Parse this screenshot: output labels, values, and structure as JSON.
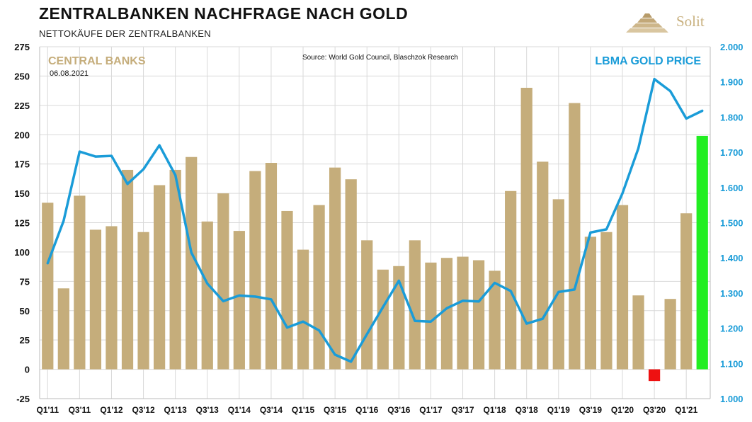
{
  "header": {
    "title": "ZENTRALBANKEN NACHFRAGE NACH GOLD",
    "subtitle": "NETTOKÄUFE DER ZENTRALBANKEN"
  },
  "logo": {
    "text": "Solit",
    "icon": "gold-bars-stack-icon"
  },
  "colors": {
    "bar": "#c5ad7b",
    "bar_negative": "#ee1111",
    "bar_highlight": "#22ee22",
    "line": "#1a9cd8",
    "grid": "#d9d9d9"
  },
  "chart_data": {
    "type": "bar",
    "title": "ZENTRALBANKEN NACHFRAGE NACH GOLD",
    "subtitle": "NETTOKÄUFE DER ZENTRALBANKEN",
    "legend_left": "CENTRAL BANKS",
    "legend_right": "LBMA GOLD PRICE",
    "date": "06.08.2021",
    "source": "Source: World Gold Council, Blaschzok Research",
    "x_tick_labels": [
      "Q1'11",
      "Q3'11",
      "Q1'12",
      "Q3'12",
      "Q1'13",
      "Q3'13",
      "Q1'14",
      "Q3'14",
      "Q1'15",
      "Q3'15",
      "Q1'16",
      "Q3'16",
      "Q1'17",
      "Q3'17",
      "Q1'18",
      "Q3'18",
      "Q1'19",
      "Q3'19",
      "Q1'20",
      "Q3'20",
      "Q1'21"
    ],
    "categories": [
      "Q1'11",
      "Q2'11",
      "Q3'11",
      "Q4'11",
      "Q1'12",
      "Q2'12",
      "Q3'12",
      "Q4'12",
      "Q1'13",
      "Q2'13",
      "Q3'13",
      "Q4'13",
      "Q1'14",
      "Q2'14",
      "Q3'14",
      "Q4'14",
      "Q1'15",
      "Q2'15",
      "Q3'15",
      "Q4'15",
      "Q1'16",
      "Q2'16",
      "Q3'16",
      "Q4'16",
      "Q1'17",
      "Q2'17",
      "Q3'17",
      "Q4'17",
      "Q1'18",
      "Q2'18",
      "Q3'18",
      "Q4'18",
      "Q1'19",
      "Q2'19",
      "Q3'19",
      "Q4'19",
      "Q1'20",
      "Q2'20",
      "Q3'20",
      "Q4'20",
      "Q1'21",
      "Q2'21"
    ],
    "series": [
      {
        "name": "CENTRAL BANKS",
        "axis": "left",
        "values": [
          142,
          69,
          148,
          119,
          122,
          170,
          117,
          157,
          170,
          181,
          126,
          150,
          118,
          169,
          176,
          135,
          102,
          140,
          172,
          162,
          110,
          85,
          88,
          110,
          91,
          95,
          96,
          93,
          84,
          152,
          240,
          177,
          145,
          227,
          113,
          117,
          140,
          63,
          -10,
          60,
          133,
          199
        ]
      },
      {
        "name": "LBMA GOLD PRICE",
        "axis": "right",
        "values": [
          1385,
          1505,
          1702,
          1688,
          1690,
          1610,
          1652,
          1720,
          1635,
          1415,
          1327,
          1277,
          1293,
          1290,
          1282,
          1202,
          1219,
          1194,
          1125,
          1105,
          1183,
          1260,
          1335,
          1221,
          1219,
          1257,
          1278,
          1276,
          1329,
          1306,
          1213,
          1227,
          1303,
          1310,
          1472,
          1481,
          1583,
          1711,
          1908,
          1874,
          1796,
          1818
        ]
      }
    ],
    "left_axis": {
      "ylim": [
        -25,
        275
      ],
      "ticks": [
        -25,
        0,
        25,
        50,
        75,
        100,
        125,
        150,
        175,
        200,
        225,
        250,
        275
      ]
    },
    "right_axis": {
      "ylim": [
        1000,
        2000
      ],
      "ticks": [
        "1.000",
        "1.100",
        "1.200",
        "1.300",
        "1.400",
        "1.500",
        "1.600",
        "1.700",
        "1.800",
        "1.900",
        "2.000"
      ]
    },
    "grid": true
  }
}
